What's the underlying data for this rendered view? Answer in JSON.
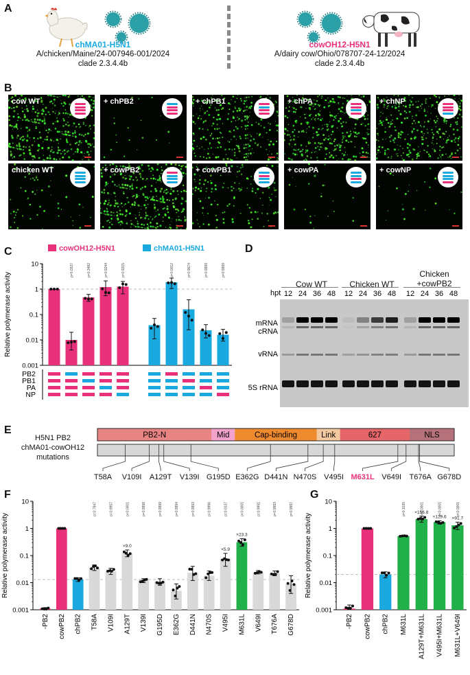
{
  "colors": {
    "cow": "#e8317a",
    "chicken": "#19a9df",
    "gray": "#d9d9d9",
    "green": "#22b04b",
    "seg": "#e8317a"
  },
  "panel_a": {
    "label": "A",
    "chicken": {
      "name": "chMA01-H5N1",
      "strain": "A/chicken/Maine/24-007946-001/2024",
      "clade": "clade 2.3.4.4b"
    },
    "cow": {
      "name": "cowOH12-H5N1",
      "strain": "A/dairy cow/Ohio/078707-24-12/2024",
      "clade": "clade 2.3.4.4b"
    }
  },
  "panel_b": {
    "label": "B",
    "cells": [
      {
        "label": "cow WT",
        "stripes": [
          "cow",
          "cow",
          "cow",
          "cow"
        ],
        "density": 1.0
      },
      {
        "label": "+ chPB2",
        "stripes": [
          "chicken",
          "cow",
          "cow",
          "cow"
        ],
        "density": 0.05
      },
      {
        "label": "+ chPB1",
        "stripes": [
          "cow",
          "chicken",
          "cow",
          "cow"
        ],
        "density": 0.7
      },
      {
        "label": "+ chPA",
        "stripes": [
          "cow",
          "cow",
          "chicken",
          "cow"
        ],
        "density": 0.9
      },
      {
        "label": "+ chNP",
        "stripes": [
          "cow",
          "cow",
          "cow",
          "chicken"
        ],
        "density": 0.8
      },
      {
        "label": "chicken WT",
        "stripes": [
          "chicken",
          "chicken",
          "chicken",
          "chicken"
        ],
        "density": 0.15
      },
      {
        "label": "+ cowPB2",
        "stripes": [
          "cow",
          "chicken",
          "chicken",
          "chicken"
        ],
        "density": 1.0
      },
      {
        "label": "+ cowPB1",
        "stripes": [
          "chicken",
          "cow",
          "chicken",
          "chicken"
        ],
        "density": 0.35
      },
      {
        "label": "+ cowPA",
        "stripes": [
          "chicken",
          "chicken",
          "cow",
          "chicken"
        ],
        "density": 0.06
      },
      {
        "label": "+ cowNP",
        "stripes": [
          "chicken",
          "chicken",
          "chicken",
          "cow"
        ],
        "density": 0.06
      }
    ]
  },
  "panel_c": {
    "label": "C",
    "ylabel": "Relative polymerase activity",
    "yticks": [
      "10",
      "1",
      "0.1",
      "0.01",
      "0.001"
    ],
    "legend": [
      "cowOH12-H5N1",
      "chMA01-H5N1"
    ],
    "segments": [
      "PB2",
      "PB1",
      "PA",
      "NP"
    ]
  },
  "panel_d": {
    "label": "D",
    "groups": [
      "Cow WT",
      "Chicken WT",
      "Chicken\n+cowPB2"
    ],
    "group_line1": "Chicken",
    "group_line2": "+cowPB2",
    "hpt_label": "hpt",
    "hpt": [
      "12",
      "24",
      "36",
      "48"
    ],
    "bands": [
      "mRNA",
      "cRNA",
      "vRNA",
      "5S rRNA"
    ]
  },
  "panel_e": {
    "label": "E",
    "title_lines": [
      "H5N1 PB2",
      "chMA01-cowOH12",
      "mutations"
    ],
    "domains": [
      {
        "name": "PB2-N",
        "start": 0,
        "end": 0.32,
        "color": "#e88583"
      },
      {
        "name": "Mid",
        "start": 0.32,
        "end": 0.385,
        "color": "#f2a2cb"
      },
      {
        "name": "Cap-binding",
        "start": 0.385,
        "end": 0.615,
        "color": "#f08a2e"
      },
      {
        "name": "Link",
        "start": 0.615,
        "end": 0.68,
        "color": "#f2c99f"
      },
      {
        "name": "627",
        "start": 0.68,
        "end": 0.875,
        "color": "#e46669"
      },
      {
        "name": "NLS",
        "start": 0.875,
        "end": 1.0,
        "color": "#b6727a"
      }
    ],
    "mutations": [
      "T58A",
      "V109I",
      "A129T",
      "V139I",
      "G195D",
      "E362G",
      "D441N",
      "N470S",
      "V495I",
      "M631L",
      "V649I",
      "T676A",
      "G678D"
    ],
    "mutation_positions": [
      0.078,
      0.145,
      0.172,
      0.186,
      0.262,
      0.485,
      0.59,
      0.633,
      0.665,
      0.842,
      0.865,
      0.9,
      0.903
    ]
  },
  "panel_f": {
    "label": "F",
    "ylabel": "Relative polymerase activity",
    "yticks": [
      "10",
      "1",
      "0.1",
      "0.01",
      "0.001"
    ]
  },
  "panel_g": {
    "label": "G",
    "ylabel": "Relative polymerase activity",
    "yticks": [
      "10",
      "1",
      "0.1",
      "0.01",
      "0.001"
    ]
  },
  "chart_data": [
    {
      "type": "bar",
      "panel": "C",
      "ylabel": "Relative polymerase activity",
      "yscale": "log",
      "ylim": [
        0.001,
        10
      ],
      "legend": [
        "cowOH12-H5N1",
        "chMA01-H5N1"
      ],
      "bars": [
        {
          "group": "cowOH12-H5N1",
          "value": 1.0,
          "err": [
            1.0,
            1.0
          ],
          "p": "",
          "segments": [
            "cow",
            "cow",
            "cow",
            "cow"
          ]
        },
        {
          "group": "cowOH12-H5N1",
          "value": 0.01,
          "err": [
            0.004,
            0.02
          ],
          "p": "p=0.0327",
          "segments": [
            "chicken",
            "cow",
            "cow",
            "cow"
          ]
        },
        {
          "group": "cowOH12-H5N1",
          "value": 0.47,
          "err": [
            0.33,
            0.62
          ],
          "p": "p=0.3482",
          "segments": [
            "cow",
            "chicken",
            "cow",
            "cow"
          ]
        },
        {
          "group": "cowOH12-H5N1",
          "value": 1.2,
          "err": [
            0.55,
            2.1
          ],
          "p": "p=0.9244",
          "segments": [
            "cow",
            "cow",
            "chicken",
            "cow"
          ]
        },
        {
          "group": "cowOH12-H5N1",
          "value": 1.25,
          "err": [
            0.65,
            2.0
          ],
          "p": "p=0.9315",
          "segments": [
            "cow",
            "cow",
            "cow",
            "chicken"
          ]
        },
        {
          "group": "chMA01-H5N1",
          "value": 0.038,
          "err": [
            0.011,
            0.07
          ],
          "p": "",
          "segments": [
            "chicken",
            "chicken",
            "chicken",
            "chicken"
          ]
        },
        {
          "group": "chMA01-H5N1",
          "value": 1.85,
          "err": [
            1.05,
            2.7
          ],
          "p": "p=0.0012",
          "segments": [
            "cow",
            "chicken",
            "chicken",
            "chicken"
          ]
        },
        {
          "group": "chMA01-H5N1",
          "value": 0.16,
          "err": [
            0.025,
            0.38
          ],
          "p": "p=0.9674",
          "segments": [
            "chicken",
            "cow",
            "chicken",
            "chicken"
          ]
        },
        {
          "group": "chMA01-H5N1",
          "value": 0.024,
          "err": [
            0.012,
            0.04
          ],
          "p": "p=0.9999",
          "segments": [
            "chicken",
            "chicken",
            "cow",
            "chicken"
          ]
        },
        {
          "group": "chMA01-H5N1",
          "value": 0.016,
          "err": [
            0.009,
            0.026
          ],
          "p": "p=0.9999",
          "segments": [
            "chicken",
            "chicken",
            "chicken",
            "cow"
          ]
        }
      ]
    },
    {
      "type": "bar",
      "panel": "F",
      "ylabel": "Relative polymerase activity",
      "yscale": "log",
      "ylim": [
        0.001,
        10
      ],
      "categories": [
        "-PB2",
        "cowPB2",
        "chPB2",
        "T58A",
        "V109I",
        "A129T",
        "V139I",
        "G195D",
        "E362G",
        "D441N",
        "N470S",
        "V495I",
        "M631L",
        "V649I",
        "T676A",
        "G678D"
      ],
      "values": [
        0.0011,
        1.0,
        0.013,
        0.035,
        0.026,
        0.12,
        0.012,
        0.011,
        0.005,
        0.023,
        0.018,
        0.075,
        0.31,
        0.024,
        0.022,
        0.009
      ],
      "err_low": [
        0.001,
        1.0,
        0.011,
        0.028,
        0.02,
        0.09,
        0.01,
        0.008,
        0.0025,
        0.012,
        0.012,
        0.04,
        0.22,
        0.021,
        0.018,
        0.004
      ],
      "err_high": [
        0.0012,
        1.0,
        0.015,
        0.045,
        0.034,
        0.16,
        0.014,
        0.014,
        0.009,
        0.04,
        0.027,
        0.12,
        0.42,
        0.028,
        0.027,
        0.018
      ],
      "bar_colors": [
        "cow",
        "cow",
        "chicken",
        "gray",
        "gray",
        "gray",
        "gray",
        "gray",
        "gray",
        "gray",
        "gray",
        "gray",
        "green",
        "gray",
        "gray",
        "gray"
      ],
      "p_values": [
        "",
        "",
        "",
        "p=0.7947",
        "p=0.9957",
        "p<0.0001",
        "p=0.9998",
        "p=0.9999",
        "p=0.9994",
        "p=0.9993",
        "p=0.9996",
        "p=0.0137",
        "p<0.0001",
        "p=0.9991",
        "p=0.9993",
        "p=0.9997"
      ],
      "annotations": [
        "",
        "",
        "",
        "",
        "",
        "×9.0",
        "",
        "",
        "",
        "",
        "",
        "×5.9",
        "×23.3",
        "",
        "",
        ""
      ],
      "dashed_line": 0.013
    },
    {
      "type": "bar",
      "panel": "G",
      "ylabel": "Relative polymerase activity",
      "yscale": "log",
      "ylim": [
        0.001,
        10
      ],
      "categories": [
        "-PB2",
        "cowPB2",
        "chPB2",
        "M631L",
        "A129T+M631L",
        "V495I+M631L",
        "M631L+V649I"
      ],
      "values": [
        0.0011,
        1.0,
        0.02,
        0.52,
        2.2,
        1.7,
        1.3
      ],
      "err_low": [
        0.001,
        1.0,
        0.015,
        0.5,
        1.7,
        1.45,
        0.9
      ],
      "err_high": [
        0.0015,
        1.0,
        0.025,
        0.54,
        2.8,
        1.9,
        1.7
      ],
      "bar_colors": [
        "cow",
        "cow",
        "chicken",
        "green",
        "green",
        "green",
        "green"
      ],
      "p_values": [
        "",
        "",
        "",
        "p=0.1035",
        "p<0.0001",
        "p<0.0001",
        "p<0.0001"
      ],
      "annotations": [
        "",
        "",
        "",
        "",
        "×156.8",
        "×129.6",
        "×91.7"
      ],
      "dashed_line": 0.02
    }
  ]
}
